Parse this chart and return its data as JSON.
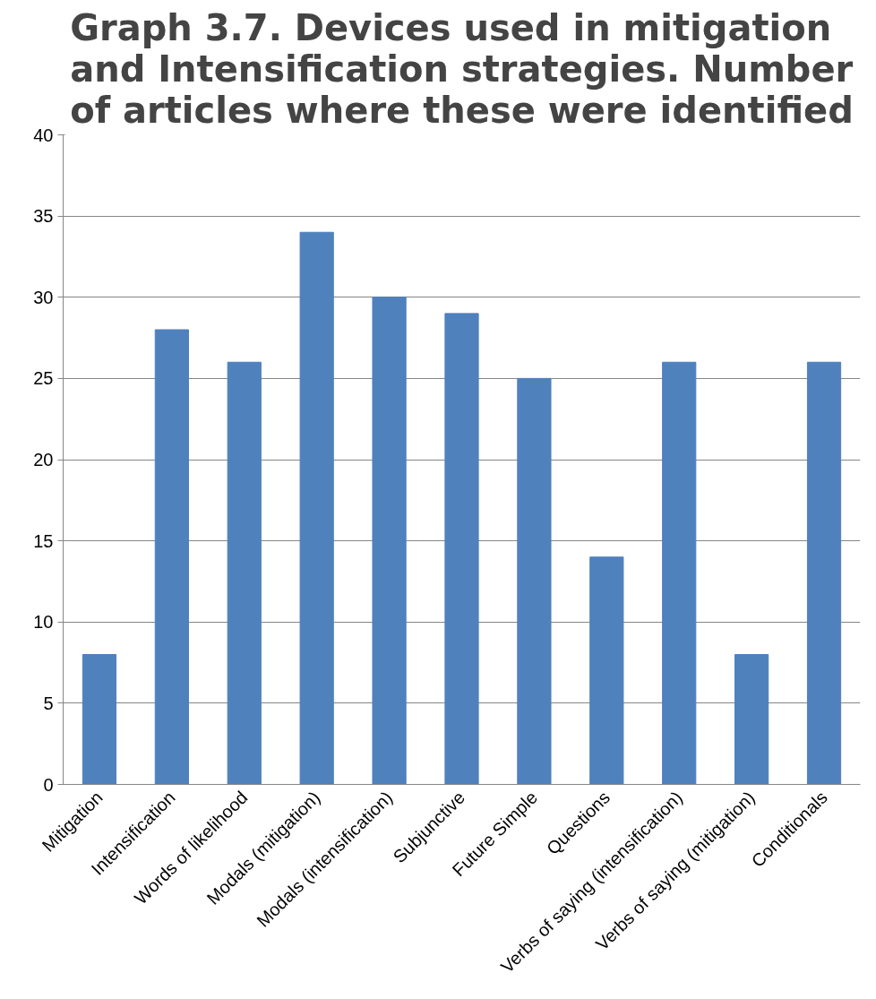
{
  "chart_data": {
    "type": "bar",
    "title": "Graph 3.7. Devices used in mitigation and Intensification strategies. Number of articles where these were identified",
    "categories": [
      "Mitigation",
      "Intensification",
      "Words of likelihood",
      "Modals (mitigation)",
      "Modals (intensification)",
      "Subjunctive",
      "Future Simple",
      "Questions",
      "Verbs of saying (intensification)",
      "Verbs of saying (mitigation)",
      "Conditionals"
    ],
    "values": [
      8,
      28,
      26,
      34,
      30,
      29,
      25,
      14,
      26,
      8,
      26
    ],
    "color": "#4f81bd",
    "ylim": [
      0,
      40
    ],
    "yticks": [
      0,
      5,
      10,
      15,
      20,
      25,
      30,
      35,
      40
    ],
    "grid": "y"
  }
}
